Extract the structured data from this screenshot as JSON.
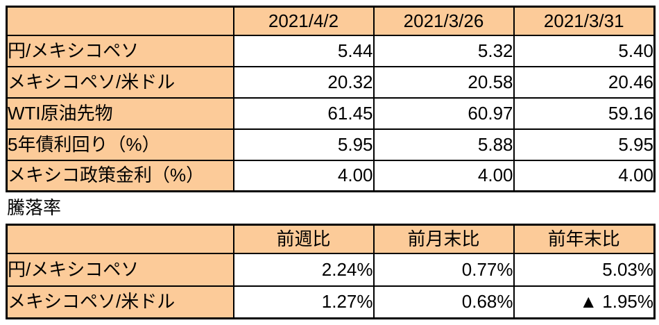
{
  "colors": {
    "cell_fill": "#FCCB99",
    "border": "#000000",
    "text": "#000000",
    "value_background": "#ffffff"
  },
  "section_label": "騰落率",
  "table1": {
    "columns": [
      "",
      "2021/4/2",
      "2021/3/26",
      "2021/3/31"
    ],
    "rows": [
      {
        "label": "円/メキシコペソ",
        "values": [
          "5.44",
          "5.32",
          "5.40"
        ]
      },
      {
        "label": "メキシコペソ/米ドル",
        "values": [
          "20.32",
          "20.58",
          "20.46"
        ]
      },
      {
        "label": "WTI原油先物",
        "values": [
          "61.45",
          "60.97",
          "59.16"
        ]
      },
      {
        "label": "5年債利回り（%）",
        "values": [
          "5.95",
          "5.88",
          "5.95"
        ]
      },
      {
        "label": "メキシコ政策金利（%）",
        "values": [
          "4.00",
          "4.00",
          "4.00"
        ]
      }
    ]
  },
  "table2": {
    "columns": [
      "",
      "前週比",
      "前月末比",
      "前年末比"
    ],
    "rows": [
      {
        "label": "円/メキシコペソ",
        "values": [
          "2.24%",
          "0.77%",
          "5.03%"
        ]
      },
      {
        "label": "メキシコペソ/米ドル",
        "values": [
          "1.27%",
          "0.68%",
          "▲ 1.95%"
        ]
      }
    ]
  }
}
